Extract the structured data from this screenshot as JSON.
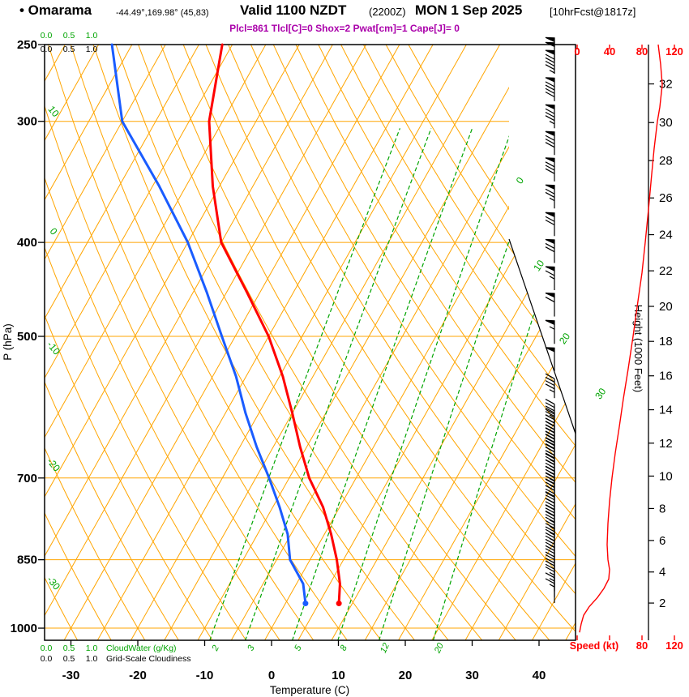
{
  "header": {
    "station_label": "• Omarama",
    "coords": "-44.49°,169.98° (45,83)",
    "valid": "Valid 1100 NZDT",
    "valid_z": "(2200Z)",
    "date": "MON 1 Sep 2025",
    "fcst": "[10hrFcst@1817z]",
    "params": "Plcl=861 Tlcl[C]=0 Shox=2 Pwat[cm]=1 Cape[J]= 0"
  },
  "colors": {
    "grid_orange": "#FFA500",
    "line_green": "#00A400",
    "label_green": "#00A400",
    "temp_red": "#FF0000",
    "dewpoint_blue": "#1A5CFF",
    "speed_red": "#FF0000",
    "params_magenta": "#AA00AA",
    "axis_black": "#000000"
  },
  "chart_data": {
    "type": "skewt_log_p_sounding",
    "title": "Omarama sounding Valid 1100 NZDT (2200Z) MON 1 Sep 2025",
    "pressure_axis": {
      "label": "P (hPa)",
      "ticks": [
        250,
        300,
        400,
        500,
        700,
        850,
        1000
      ],
      "range": [
        250,
        1030
      ]
    },
    "temperature_axis": {
      "label": "Temperature (C)",
      "ticks": [
        -30,
        -20,
        -10,
        0,
        10,
        20,
        30,
        40
      ],
      "isotherm_step_c": 5
    },
    "height_axis": {
      "label": "Height (1000 Feet)",
      "ticks": [
        2,
        4,
        6,
        8,
        10,
        12,
        14,
        16,
        18,
        20,
        22,
        24,
        26,
        28,
        30,
        32
      ]
    },
    "speed_axis": {
      "label": "Speed (kt)",
      "ticks": [
        0,
        40,
        80,
        120
      ]
    },
    "cloudwater_scale": {
      "label": "CloudWater (g/Kg)",
      "values": [
        "0.0",
        "0.5",
        "1.0"
      ]
    },
    "cloudiness_scale": {
      "label": "Grid-Scale Cloudiness",
      "values": [
        "0.0",
        "0.5",
        "1.0"
      ]
    },
    "dry_adiabat_labels": [
      10,
      0,
      -10,
      -20,
      -30
    ],
    "isotherm_labels": [
      0,
      10,
      20,
      30
    ],
    "mixing_ratio_lines_g_kg": [
      2,
      3,
      5,
      8,
      12,
      20
    ],
    "temperature_profile_p_t": [
      [
        943,
        8
      ],
      [
        900,
        6.5
      ],
      [
        850,
        4
      ],
      [
        800,
        1
      ],
      [
        750,
        -2.5
      ],
      [
        700,
        -7
      ],
      [
        650,
        -11
      ],
      [
        600,
        -15
      ],
      [
        550,
        -19.5
      ],
      [
        500,
        -25
      ],
      [
        450,
        -32
      ],
      [
        400,
        -40
      ],
      [
        350,
        -46
      ],
      [
        300,
        -52
      ],
      [
        250,
        -56.5
      ]
    ],
    "dewpoint_profile_p_t": [
      [
        943,
        3
      ],
      [
        900,
        1
      ],
      [
        850,
        -3
      ],
      [
        800,
        -5.5
      ],
      [
        750,
        -9
      ],
      [
        700,
        -13
      ],
      [
        650,
        -17.5
      ],
      [
        600,
        -22
      ],
      [
        550,
        -26.5
      ],
      [
        500,
        -32
      ],
      [
        450,
        -38
      ],
      [
        400,
        -45
      ],
      [
        350,
        -54
      ],
      [
        300,
        -65
      ],
      [
        250,
        -73
      ]
    ],
    "wind_barbs_p_kt": [
      [
        260,
        100
      ],
      [
        268,
        95
      ],
      [
        286,
        90
      ],
      [
        305,
        85
      ],
      [
        325,
        82
      ],
      [
        346,
        78
      ],
      [
        369,
        75
      ],
      [
        394,
        72
      ],
      [
        420,
        68
      ],
      [
        448,
        65
      ],
      [
        477,
        60
      ],
      [
        509,
        55
      ],
      [
        543,
        50
      ],
      [
        579,
        46
      ],
      [
        615,
        44
      ],
      [
        628,
        43
      ],
      [
        638,
        42
      ],
      [
        648,
        41
      ],
      [
        658,
        40
      ],
      [
        668,
        39
      ],
      [
        678,
        38
      ],
      [
        689,
        37
      ],
      [
        699,
        36
      ],
      [
        710,
        35
      ],
      [
        721,
        34
      ],
      [
        732,
        33
      ],
      [
        743,
        32
      ],
      [
        755,
        31
      ],
      [
        766,
        30
      ],
      [
        778,
        29
      ],
      [
        790,
        28
      ],
      [
        802,
        27
      ],
      [
        814,
        26
      ],
      [
        826,
        25
      ],
      [
        838,
        24
      ],
      [
        851,
        23
      ],
      [
        864,
        22
      ],
      [
        877,
        21
      ],
      [
        890,
        20
      ],
      [
        903,
        19
      ],
      [
        916,
        17
      ],
      [
        929,
        15
      ],
      [
        942,
        13
      ]
    ],
    "wind_speed_curve_p_kt": [
      [
        250,
        100
      ],
      [
        262,
        103
      ],
      [
        275,
        105
      ],
      [
        290,
        102
      ],
      [
        300,
        99
      ],
      [
        320,
        95
      ],
      [
        340,
        92
      ],
      [
        370,
        88
      ],
      [
        400,
        84
      ],
      [
        430,
        80
      ],
      [
        460,
        75
      ],
      [
        500,
        69
      ],
      [
        540,
        63
      ],
      [
        580,
        57
      ],
      [
        620,
        52
      ],
      [
        660,
        47
      ],
      [
        700,
        43
      ],
      [
        740,
        40
      ],
      [
        780,
        38
      ],
      [
        820,
        37
      ],
      [
        850,
        38
      ],
      [
        870,
        40
      ],
      [
        890,
        39
      ],
      [
        910,
        33
      ],
      [
        930,
        25
      ],
      [
        950,
        15
      ],
      [
        970,
        8
      ],
      [
        990,
        5
      ],
      [
        1010,
        3
      ]
    ]
  }
}
